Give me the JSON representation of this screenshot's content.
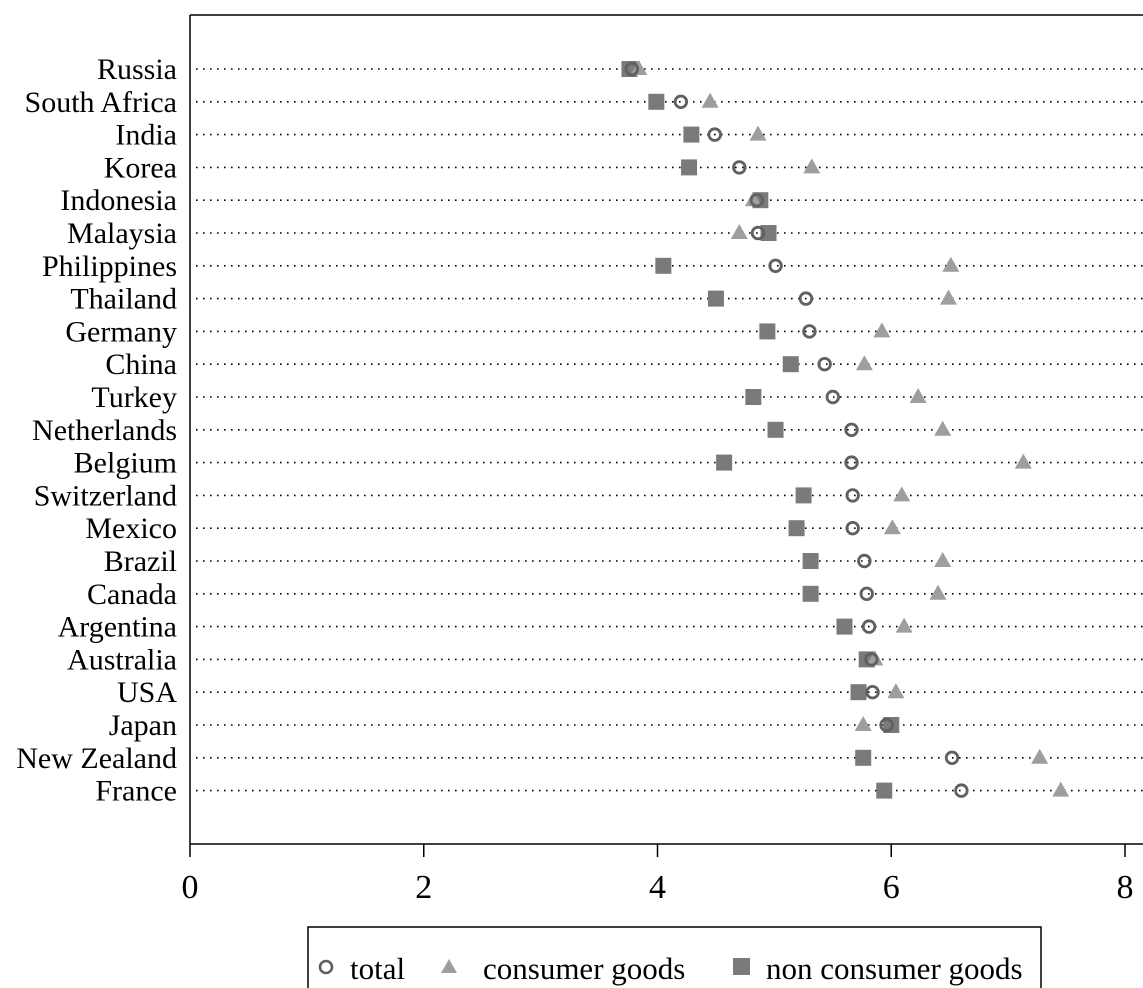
{
  "chart_data": {
    "type": "scatter",
    "categories": [
      "Russia",
      "South Africa",
      "India",
      "Korea",
      "Indonesia",
      "Malaysia",
      "Philippines",
      "Thailand",
      "Germany",
      "China",
      "Turkey",
      "Netherlands",
      "Belgium",
      "Switzerland",
      "Mexico",
      "Brazil",
      "Canada",
      "Argentina",
      "Australia",
      "USA",
      "Japan",
      "New Zealand",
      "France"
    ],
    "series": [
      {
        "name": "total",
        "marker": "circle",
        "color": "#606060",
        "values": [
          3.78,
          4.2,
          4.49,
          4.7,
          4.85,
          4.86,
          5.01,
          5.27,
          5.3,
          5.43,
          5.5,
          5.66,
          5.66,
          5.67,
          5.67,
          5.77,
          5.79,
          5.81,
          5.83,
          5.84,
          5.96,
          6.52,
          6.6
        ]
      },
      {
        "name": "consumer goods",
        "marker": "triangle",
        "color": "#9e9e9e",
        "values": [
          3.84,
          4.45,
          4.86,
          5.32,
          4.82,
          4.7,
          6.51,
          6.49,
          5.92,
          5.77,
          6.23,
          6.44,
          7.13,
          6.09,
          6.01,
          6.44,
          6.4,
          6.11,
          5.86,
          6.04,
          5.76,
          7.27,
          7.45
        ]
      },
      {
        "name": "non consumer goods",
        "marker": "square",
        "color": "#7a7a7a",
        "values": [
          3.76,
          3.99,
          4.29,
          4.27,
          4.88,
          4.95,
          4.05,
          4.5,
          4.94,
          5.14,
          4.82,
          5.01,
          4.57,
          5.25,
          5.19,
          5.31,
          5.31,
          5.6,
          5.79,
          5.72,
          6.0,
          5.76,
          5.94
        ]
      }
    ],
    "xlim": [
      0,
      8.1
    ],
    "xticks": [
      "0",
      "2",
      "4",
      "6",
      "8"
    ],
    "xlabel": "",
    "ylabel": "",
    "title": "",
    "grid": "dotted horizontal lines",
    "legend_position": "bottom"
  },
  "legend": {
    "total_label": "total",
    "consumer_label": "consumer goods",
    "nonconsumer_label": "non consumer goods"
  }
}
